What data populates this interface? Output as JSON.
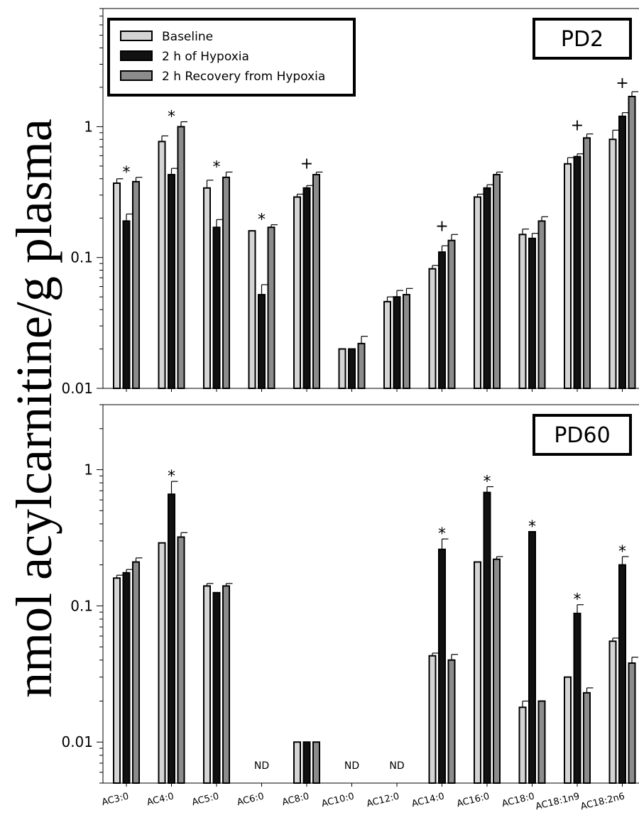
{
  "chart_data": {
    "type": "bar",
    "ylabel": "nmol acylcarnitine/g plasma",
    "yscale": "log",
    "categories": [
      "AC3:0",
      "AC4:0",
      "AC5:0",
      "AC6:0",
      "AC8:0",
      "AC10:0",
      "AC12:0",
      "AC14:0",
      "AC16:0",
      "AC18:0",
      "AC18:1n9",
      "AC18:2n6"
    ],
    "legend": [
      "Baseline",
      "2 h of Hypoxia",
      "2 h Recovery from Hypoxia"
    ],
    "legend_placement": "top-left",
    "colors": {
      "baseline": "#d4d4d4",
      "hypoxia": "#111111",
      "recovery": "#8c8c8c"
    },
    "ticks": [
      "0.01",
      "0.1",
      "1"
    ],
    "nd_label": "ND",
    "panels": [
      {
        "label": "PD2",
        "ylim": [
          0.01,
          8
        ],
        "series": [
          {
            "name": "Baseline",
            "values": [
              0.37,
              0.77,
              0.34,
              0.16,
              0.29,
              0.02,
              0.046,
              0.082,
              0.29,
              0.15,
              0.52,
              0.8
            ]
          },
          {
            "name": "2 h of Hypoxia",
            "values": [
              0.19,
              0.43,
              0.17,
              0.052,
              0.34,
              0.02,
              0.05,
              0.11,
              0.34,
              0.14,
              0.59,
              1.2
            ]
          },
          {
            "name": "2 h Recovery from Hypoxia",
            "values": [
              0.38,
              1.0,
              0.41,
              0.17,
              0.43,
              0.022,
              0.052,
              0.135,
              0.43,
              0.19,
              0.82,
              1.7
            ]
          }
        ],
        "errors": [
          [
            0.03,
            0.08,
            0.05,
            0.0,
            0.015,
            0.0,
            0.004,
            0.005,
            0.015,
            0.015,
            0.06,
            0.14
          ],
          [
            0.025,
            0.05,
            0.025,
            0.01,
            0.015,
            0.0,
            0.006,
            0.013,
            0.02,
            0.013,
            0.03,
            0.08
          ],
          [
            0.03,
            0.09,
            0.04,
            0.008,
            0.02,
            0.003,
            0.006,
            0.015,
            0.02,
            0.015,
            0.06,
            0.15
          ]
        ],
        "markers": [
          "*",
          "*",
          "*",
          "*",
          "+",
          "",
          "",
          "+",
          "",
          "",
          "+",
          "+"
        ]
      },
      {
        "label": "PD60",
        "ylim": [
          0.005,
          3
        ],
        "series": [
          {
            "name": "Baseline",
            "values": [
              0.16,
              0.29,
              0.14,
              null,
              0.01,
              null,
              null,
              0.043,
              0.21,
              0.018,
              0.03,
              0.055
            ]
          },
          {
            "name": "2 h of Hypoxia",
            "values": [
              0.175,
              0.66,
              0.125,
              null,
              0.01,
              null,
              null,
              0.26,
              0.68,
              0.35,
              0.088,
              0.2
            ]
          },
          {
            "name": "2 h Recovery from Hypoxia",
            "values": [
              0.21,
              0.32,
              0.14,
              null,
              0.01,
              null,
              null,
              0.04,
              0.22,
              0.02,
              0.023,
              0.038
            ]
          }
        ],
        "errors": [
          [
            0.008,
            0.0,
            0.006,
            null,
            0.0,
            null,
            null,
            0.002,
            0.0,
            0.002,
            0.0,
            0.003
          ],
          [
            0.01,
            0.16,
            0.0,
            null,
            0.0,
            null,
            null,
            0.05,
            0.07,
            0.0,
            0.014,
            0.03
          ],
          [
            0.015,
            0.025,
            0.006,
            null,
            0.0,
            null,
            null,
            0.004,
            0.01,
            0.0,
            0.002,
            0.004
          ]
        ],
        "markers": [
          "",
          "*",
          "",
          "",
          "",
          "",
          "",
          "*",
          "*",
          "*",
          "*",
          "*"
        ],
        "nd": [
          false,
          false,
          false,
          true,
          false,
          true,
          true,
          false,
          false,
          false,
          false,
          false
        ]
      }
    ]
  }
}
